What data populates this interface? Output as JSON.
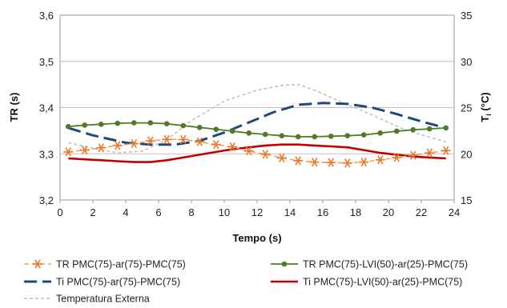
{
  "chart_data": {
    "type": "line",
    "xlabel": "Tempo (s)",
    "ylabel_left": "TR (s)",
    "ylabel_right_base": "T",
    "ylabel_right_sub": "i",
    "ylabel_right_unit": " (°C)",
    "xlim": [
      0,
      24
    ],
    "ylim_left": [
      3.2,
      3.6
    ],
    "ylim_right": [
      15,
      35
    ],
    "x_ticks": [
      "0",
      "2",
      "4",
      "6",
      "8",
      "10",
      "12",
      "14",
      "16",
      "18",
      "20",
      "22",
      "24"
    ],
    "y_left_ticks": [
      "3,2",
      "3,3",
      "3,4",
      "3,5",
      "3,6"
    ],
    "y_right_ticks": [
      "15",
      "20",
      "25",
      "30",
      "35"
    ],
    "legend_position": "bottom",
    "series": [
      {
        "name": "TR PMC(75)-ar(75)-PMC(75)",
        "axis": "left",
        "color": "#F5A05A",
        "dash": "6,4",
        "marker": "asterisk",
        "x": [
          0.5,
          1.5,
          2.5,
          3.5,
          4.5,
          5.5,
          6.5,
          7.5,
          8.5,
          9.5,
          10.5,
          11.5,
          12.5,
          13.5,
          14.5,
          15.5,
          16.5,
          17.5,
          18.5,
          19.5,
          20.5,
          21.5,
          22.5,
          23.5
        ],
        "y": [
          3.304,
          3.308,
          3.313,
          3.318,
          3.322,
          3.328,
          3.331,
          3.331,
          3.326,
          3.32,
          3.315,
          3.306,
          3.299,
          3.291,
          3.285,
          3.282,
          3.281,
          3.28,
          3.282,
          3.287,
          3.292,
          3.297,
          3.302,
          3.307
        ]
      },
      {
        "name": "TR PMC(75)-LVI(50)-ar(25)-PMC(75)",
        "axis": "left",
        "color": "#4F7A28",
        "dash": "",
        "marker": "dot",
        "x": [
          0.5,
          1.5,
          2.5,
          3.5,
          4.5,
          5.5,
          6.5,
          7.5,
          8.5,
          9.5,
          10.5,
          11.5,
          12.5,
          13.5,
          14.5,
          15.5,
          16.5,
          17.5,
          18.5,
          19.5,
          20.5,
          21.5,
          22.5,
          23.5
        ],
        "y": [
          3.359,
          3.362,
          3.364,
          3.366,
          3.367,
          3.367,
          3.365,
          3.361,
          3.357,
          3.353,
          3.349,
          3.345,
          3.342,
          3.339,
          3.337,
          3.337,
          3.338,
          3.339,
          3.341,
          3.345,
          3.349,
          3.352,
          3.354,
          3.356
        ]
      },
      {
        "name": "Ti PMC(75)-ar(75)-PMC(75)",
        "axis": "right",
        "color": "#1F497D",
        "dash": "16,7",
        "marker": "none",
        "x": [
          0.5,
          2,
          4,
          5.5,
          7,
          8.5,
          10,
          11.5,
          13,
          14.5,
          16,
          17.5,
          19,
          20.5,
          22,
          23.5
        ],
        "y": [
          22.8,
          22.0,
          21.2,
          21.0,
          21.0,
          21.4,
          22.3,
          23.4,
          24.5,
          25.3,
          25.5,
          25.4,
          25.0,
          24.3,
          23.5,
          22.8
        ]
      },
      {
        "name": "Ti PMC(75)-LVI(50)-ar(25)-PMC(75)",
        "axis": "right",
        "color": "#C00000",
        "dash": "",
        "marker": "none",
        "x": [
          0.5,
          1.5,
          2.5,
          3.5,
          4.5,
          5.5,
          6.5,
          7.5,
          8.5,
          9.5,
          10.5,
          11.5,
          12.5,
          13.5,
          14.5,
          15.5,
          16.5,
          17.5,
          18.5,
          19.5,
          20.5,
          21.5,
          22.5,
          23.5
        ],
        "y": [
          19.5,
          19.4,
          19.3,
          19.2,
          19.1,
          19.1,
          19.3,
          19.6,
          19.9,
          20.2,
          20.5,
          20.7,
          20.9,
          21.0,
          21.0,
          20.9,
          20.8,
          20.7,
          20.4,
          20.1,
          19.9,
          19.7,
          19.6,
          19.5
        ]
      },
      {
        "name": "Temperatura Externa",
        "axis": "right",
        "color": "#BBBBBB",
        "dash": "4,3",
        "marker": "none",
        "x": [
          0.5,
          2,
          3.5,
          5,
          6.5,
          8,
          10,
          12,
          13.5,
          14.5,
          15.5,
          17,
          19,
          21,
          22.5,
          23.5
        ],
        "y": [
          21.2,
          20.6,
          20.1,
          20.3,
          21.5,
          23.6,
          25.7,
          26.9,
          27.4,
          27.5,
          26.9,
          25.7,
          24.2,
          22.6,
          21.8,
          21.3
        ]
      }
    ]
  }
}
